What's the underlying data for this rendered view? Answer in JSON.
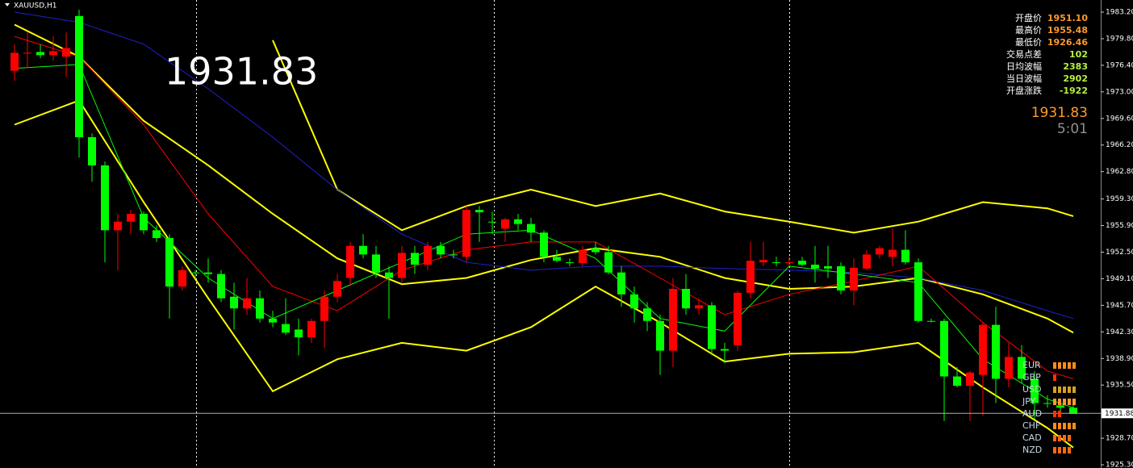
{
  "chart_data": {
    "type": "candlestick",
    "title": "XAUUSD,H1",
    "ylim": [
      1924.89,
      1984.75
    ],
    "yticks": [
      {
        "value": 1983.2,
        "label": "1983.20"
      },
      {
        "value": 1979.8,
        "label": "1979.80"
      },
      {
        "value": 1976.4,
        "label": "1976.40"
      },
      {
        "value": 1973,
        "label": "1973.00"
      },
      {
        "value": 1969.6,
        "label": "1969.60"
      },
      {
        "value": 1966.2,
        "label": "1966.20"
      },
      {
        "value": 1962.8,
        "label": "1962.80"
      },
      {
        "value": 1959.3,
        "label": "1959.30"
      },
      {
        "value": 1955.9,
        "label": "1955.90"
      },
      {
        "value": 1952.5,
        "label": "1952.50"
      },
      {
        "value": 1949.1,
        "label": "1949.10"
      },
      {
        "value": 1945.7,
        "label": "1945.70"
      },
      {
        "value": 1942.3,
        "label": "1942.30"
      },
      {
        "value": 1938.9,
        "label": "1938.90"
      },
      {
        "value": 1935.5,
        "label": "1935.50"
      },
      {
        "value": 1928.7,
        "label": "1928.70"
      },
      {
        "value": 1925.3,
        "label": "1925.30"
      }
    ],
    "up_color": "#ff0000",
    "down_color": "#00ff00",
    "open": [
      1975.7,
      1977.9,
      1978.1,
      1977.7,
      1977.5,
      1982.7,
      1967.2,
      1963.6,
      1955.3,
      1956.4,
      1957.4,
      1955.3,
      1954.3,
      1948.1,
      1949.9,
      1949.9,
      1949.7,
      1946.8,
      1945.3,
      1946.6,
      1944.0,
      1943.3,
      1942.6,
      1941.6,
      1943.7,
      1946.8,
      1949.2,
      1953.3,
      1952.2,
      1949.9,
      1949.2,
      1952.4,
      1950.9,
      1953.3,
      1952.2,
      1951.9,
      1957.9,
      1956.4,
      1955.5,
      1956.7,
      1956.1,
      1955.0,
      1951.9,
      1951.2,
      1951.1,
      1953.0,
      1952.5,
      1949.9,
      1947.1,
      1945.3,
      1943.7,
      1939.9,
      1947.8,
      1945.3,
      1945.7,
      1940.1,
      1940.6,
      1947.3,
      1951.2,
      1951.2,
      1951.1,
      1951.4,
      1950.9,
      1950.7,
      1950.7,
      1947.6,
      1950.4,
      1952.2,
      1951.9,
      1952.8,
      1951.2,
      1943.7,
      1943.7,
      1936.6,
      1935.4,
      1936.8,
      1943.2,
      1936.3,
      1939.1,
      1936.3,
      1933.2,
      1932.9,
      1932.6
    ],
    "high": [
      1979.1,
      1980.6,
      1979.1,
      1980.1,
      1980.6,
      1983.5,
      1967.7,
      1964.1,
      1957.4,
      1957.9,
      1957.7,
      1955.9,
      1954.8,
      1950.7,
      1950.2,
      1951.7,
      1950.2,
      1948.6,
      1949.2,
      1947.6,
      1945.0,
      1946.6,
      1944.0,
      1944.0,
      1947.6,
      1949.7,
      1953.8,
      1954.8,
      1953.3,
      1950.7,
      1953.3,
      1953.3,
      1953.8,
      1953.8,
      1952.8,
      1958.4,
      1958.4,
      1957.7,
      1956.9,
      1957.4,
      1956.9,
      1955.3,
      1952.8,
      1951.7,
      1953.3,
      1953.8,
      1953.3,
      1950.7,
      1948.1,
      1946.1,
      1944.5,
      1949.2,
      1949.7,
      1946.6,
      1946.1,
      1940.9,
      1947.6,
      1953.8,
      1953.8,
      1951.9,
      1951.9,
      1951.9,
      1953.3,
      1953.3,
      1951.2,
      1951.7,
      1952.8,
      1953.3,
      1955.5,
      1955.3,
      1951.7,
      1944.0,
      1944.0,
      1937.8,
      1937.3,
      1943.5,
      1945.5,
      1940.9,
      1940.6,
      1937.3,
      1934.2,
      1933.7,
      1933.2
    ],
    "low": [
      1974.4,
      1976.0,
      1977.3,
      1977.0,
      1974.9,
      1964.6,
      1961.5,
      1951.2,
      1950.2,
      1954.8,
      1954.8,
      1953.8,
      1944.0,
      1947.6,
      1949.2,
      1948.6,
      1946.1,
      1942.6,
      1944.5,
      1943.5,
      1942.9,
      1941.9,
      1939.3,
      1940.9,
      1940.2,
      1946.1,
      1948.1,
      1951.7,
      1949.2,
      1944.0,
      1948.6,
      1949.7,
      1950.2,
      1951.7,
      1951.7,
      1951.2,
      1953.8,
      1954.8,
      1953.8,
      1955.3,
      1953.8,
      1951.2,
      1951.2,
      1950.7,
      1950.7,
      1952.2,
      1949.7,
      1945.5,
      1943.5,
      1942.4,
      1936.8,
      1937.8,
      1944.5,
      1944.5,
      1939.3,
      1938.3,
      1939.9,
      1946.6,
      1950.7,
      1950.7,
      1950.7,
      1950.7,
      1948.6,
      1949.2,
      1947.1,
      1945.7,
      1950.2,
      1951.7,
      1950.7,
      1950.9,
      1943.5,
      1943.5,
      1930.9,
      1935.2,
      1930.9,
      1931.6,
      1933.2,
      1935.2,
      1935.7,
      1931.1,
      1932.6,
      1931.9,
      1931.9
    ],
    "close": [
      1978.0,
      1978.0,
      1977.7,
      1978.2,
      1978.6,
      1967.2,
      1963.6,
      1955.3,
      1956.4,
      1957.4,
      1955.3,
      1954.3,
      1948.1,
      1950.2,
      1949.9,
      1949.7,
      1946.6,
      1945.3,
      1946.6,
      1944.0,
      1943.5,
      1942.2,
      1941.6,
      1943.7,
      1946.8,
      1948.8,
      1953.3,
      1952.2,
      1949.9,
      1949.2,
      1952.4,
      1950.9,
      1953.3,
      1952.2,
      1952.2,
      1957.9,
      1957.6,
      1956.4,
      1956.7,
      1956.1,
      1955.0,
      1951.9,
      1951.4,
      1951.2,
      1952.8,
      1952.5,
      1949.9,
      1947.1,
      1945.3,
      1943.7,
      1939.9,
      1947.8,
      1945.3,
      1945.7,
      1940.1,
      1939.9,
      1947.3,
      1951.4,
      1951.5,
      1951.2,
      1951.2,
      1950.9,
      1950.4,
      1950.4,
      1947.6,
      1950.5,
      1952.2,
      1953.0,
      1952.8,
      1951.2,
      1943.7,
      1943.7,
      1936.6,
      1935.4,
      1937.1,
      1943.2,
      1936.3,
      1939.1,
      1936.3,
      1933.2,
      1933.2,
      1932.6,
      1931.83
    ],
    "series": [
      {
        "color": "#ffff00",
        "x": [
          20,
          25,
          30,
          35,
          40,
          45,
          50,
          55,
          60,
          65,
          70,
          75,
          80,
          82
        ],
        "values": [
          1979.6,
          1960.5,
          1955.3,
          1958.4,
          1960.5,
          1958.4,
          1960.0,
          1957.7,
          1956.4,
          1955.0,
          1956.4,
          1958.9,
          1958.1,
          1957.1
        ]
      },
      {
        "color": "#ffff00",
        "x": [
          0,
          5,
          10,
          15,
          20,
          25,
          30,
          35,
          40,
          45,
          50,
          55,
          60,
          65,
          70,
          75,
          80,
          82
        ],
        "values": [
          1981.6,
          1977.5,
          1969.3,
          1963.6,
          1957.4,
          1951.7,
          1948.4,
          1949.2,
          1951.5,
          1953.0,
          1951.9,
          1949.2,
          1947.8,
          1948.1,
          1949.2,
          1947.1,
          1944.0,
          1942.2
        ]
      },
      {
        "color": "#ffff00",
        "x": [
          0,
          5,
          10,
          15,
          20,
          25,
          30,
          35,
          40,
          45,
          50,
          55,
          60,
          65,
          70,
          75,
          80,
          82
        ],
        "values": [
          1968.8,
          1971.9,
          1958.9,
          1946.6,
          1934.7,
          1938.8,
          1940.9,
          1939.9,
          1942.9,
          1948.1,
          1943.5,
          1938.5,
          1939.5,
          1939.7,
          1940.9,
          1935.2,
          1930.0,
          1927.5
        ]
      },
      {
        "color": "#2020d0",
        "x": [
          0,
          5,
          10,
          15,
          20,
          25,
          30,
          35,
          40,
          45,
          50,
          55,
          60,
          65,
          70,
          75,
          80,
          82
        ],
        "values": [
          1983.2,
          1981.9,
          1979.1,
          1973.4,
          1967.2,
          1960.5,
          1954.8,
          1951.2,
          1950.2,
          1950.7,
          1950.7,
          1950.4,
          1950.2,
          1949.9,
          1949.2,
          1947.6,
          1945.0,
          1944.0
        ]
      },
      {
        "color": "#ff0000",
        "x": [
          0,
          5,
          10,
          15,
          20,
          25,
          30,
          35,
          40,
          45,
          50,
          55,
          60,
          65,
          70,
          75,
          80,
          82
        ],
        "values": [
          1980.1,
          1977.5,
          1968.8,
          1957.4,
          1948.1,
          1945.0,
          1950.2,
          1952.8,
          1953.8,
          1953.8,
          1949.2,
          1944.5,
          1947.1,
          1948.8,
          1950.7,
          1943.5,
          1937.3,
          1936.3
        ]
      },
      {
        "color": "#00ff00",
        "x": [
          0,
          5,
          10,
          15,
          20,
          25,
          30,
          35,
          40,
          45,
          50,
          55,
          60,
          65,
          70,
          75,
          80,
          82
        ],
        "values": [
          1976.0,
          1976.5,
          1956.9,
          1949.2,
          1944.0,
          1947.6,
          1951.2,
          1954.8,
          1955.3,
          1951.7,
          1944.0,
          1942.4,
          1950.7,
          1949.7,
          1948.6,
          1938.8,
          1933.7,
          1932.6
        ]
      }
    ],
    "price_line": 1931.88
  },
  "big_price": "1931.83",
  "info": [
    {
      "label": "开盘价",
      "value": "1951.10"
    },
    {
      "label": "最高价",
      "value": "1955.48"
    },
    {
      "label": "最低价",
      "value": "1926.46"
    },
    {
      "label": "交易点差",
      "value": "102"
    },
    {
      "label": "日均波幅",
      "value": "2383"
    },
    {
      "label": "当日波幅",
      "value": "2902"
    },
    {
      "label": "开盘涨跌",
      "value": "-1922"
    }
  ],
  "panel_price": "1931.83",
  "countdown": "5:01",
  "currencies": [
    {
      "name": "EUR",
      "strength": 5,
      "color": "#ff8c1a"
    },
    {
      "name": "GBP",
      "strength": 1,
      "color": "#ff3300"
    },
    {
      "name": "USD",
      "strength": 5,
      "color": "#d8a020"
    },
    {
      "name": "JPY",
      "strength": 5,
      "color": "#ff9a30"
    },
    {
      "name": "AUD",
      "strength": 2,
      "color": "#ff3300"
    },
    {
      "name": "CHF",
      "strength": 5,
      "color": "#ff8c1a"
    },
    {
      "name": "CAD",
      "strength": 4,
      "color": "#ff6a10"
    },
    {
      "name": "NZD",
      "strength": 4,
      "color": "#ff6a10"
    }
  ]
}
